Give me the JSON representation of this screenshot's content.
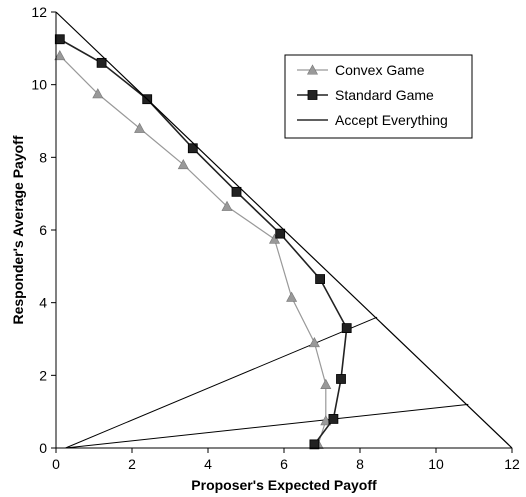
{
  "chart_data": {
    "type": "line",
    "xlabel": "Proposer's Expected Payoff",
    "ylabel": "Responder's Average Payoff",
    "xlim": [
      0,
      12
    ],
    "ylim": [
      0,
      12
    ],
    "xticks": [
      0,
      2,
      4,
      6,
      8,
      10,
      12
    ],
    "yticks": [
      0,
      2,
      4,
      6,
      8,
      10,
      12
    ],
    "grid": false,
    "legend_position": "top-right",
    "series": [
      {
        "name": "Convex Game",
        "marker": "triangle",
        "color": "#999999",
        "x": [
          0.1,
          1.1,
          2.2,
          3.35,
          4.5,
          5.75,
          6.2,
          6.8,
          7.1,
          7.1,
          6.9
        ],
        "y": [
          10.8,
          9.75,
          8.8,
          7.8,
          6.65,
          5.75,
          4.15,
          2.9,
          1.75,
          0.75,
          0.1
        ]
      },
      {
        "name": "Standard Game",
        "marker": "square",
        "color": "#222222",
        "x": [
          0.1,
          1.2,
          2.4,
          3.6,
          4.75,
          5.9,
          6.95,
          7.65,
          7.5,
          7.3,
          6.8
        ],
        "y": [
          11.25,
          10.6,
          9.6,
          8.25,
          7.05,
          5.9,
          4.65,
          3.3,
          1.9,
          0.8,
          0.1
        ]
      },
      {
        "name": "Accept Everything",
        "marker": "none",
        "color": "#000000",
        "x": [
          0,
          12
        ],
        "y": [
          12,
          0
        ]
      }
    ],
    "reference_lines": [
      {
        "x": [
          0.25,
          8.45
        ],
        "y": [
          0,
          3.6
        ]
      },
      {
        "x": [
          0.25,
          10.85
        ],
        "y": [
          0,
          1.2
        ]
      }
    ]
  }
}
